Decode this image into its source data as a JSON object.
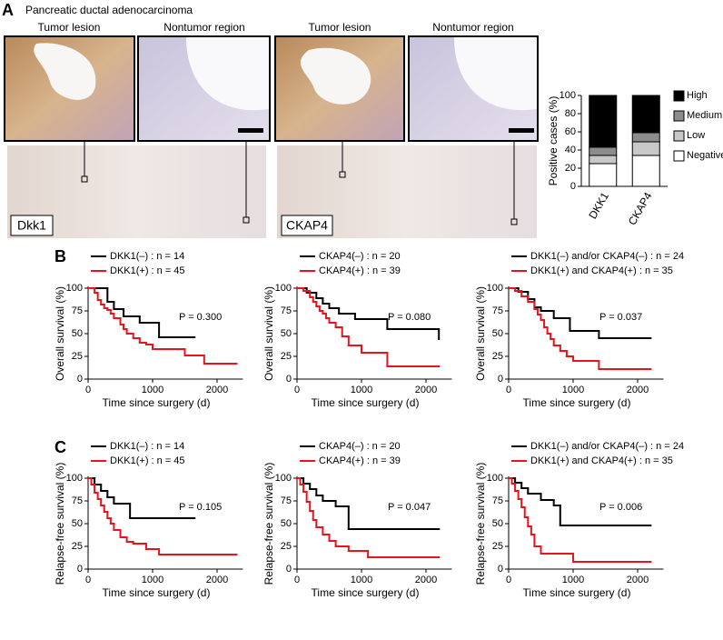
{
  "panel_labels": [
    "A",
    "B",
    "C"
  ],
  "panel_a": {
    "title": "Pancreatic ductal adenocarcinoma",
    "images": [
      {
        "left_label": "Tumor lesion",
        "right_label": "Nontumor region",
        "marker": "Dkk1"
      },
      {
        "left_label": "Tumor lesion",
        "right_label": "Nontumor region",
        "marker": "CKAP4"
      }
    ]
  },
  "chart_data": [
    {
      "type": "stacked_bar",
      "ylabel": "Positive cases (%)",
      "categories": [
        "DKK1",
        "CKAP4"
      ],
      "series": [
        {
          "name": "Negative",
          "color": "#ffffff",
          "values": [
            25,
            34
          ]
        },
        {
          "name": "Low",
          "color": "#c8c8c8",
          "values": [
            9,
            15
          ]
        },
        {
          "name": "Medium",
          "color": "#8c8c8c",
          "values": [
            9,
            10
          ]
        },
        {
          "name": "High",
          "color": "#000000",
          "values": [
            57,
            41
          ]
        }
      ],
      "ylim": [
        0,
        100
      ],
      "yticks": [
        0,
        20,
        40,
        60,
        80,
        100
      ]
    },
    {
      "type": "step",
      "ylabel": "Overall survival (%)",
      "xlabel": "Time since surgery (d)",
      "annotation": "P = 0.300",
      "xlim": [
        0,
        2400
      ],
      "xticks": [
        0,
        1000,
        2000
      ],
      "ylim": [
        0,
        100
      ],
      "yticks": [
        0,
        25,
        50,
        75,
        100
      ],
      "series": [
        {
          "name": "DKK1(–) : n = 14",
          "color": "#000000",
          "x": [
            0,
            300,
            400,
            550,
            800,
            1100,
            1650
          ],
          "values": [
            100,
            85,
            77,
            69,
            62,
            46,
            46
          ]
        },
        {
          "name": "DKK1(+) : n = 45",
          "color": "#e8141c",
          "x": [
            0,
            100,
            150,
            200,
            250,
            300,
            350,
            400,
            500,
            550,
            600,
            700,
            800,
            900,
            1000,
            1500,
            1800,
            2300
          ],
          "values": [
            100,
            95,
            87,
            82,
            78,
            76,
            72,
            67,
            60,
            55,
            50,
            45,
            40,
            38,
            33,
            26,
            17,
            17
          ]
        }
      ]
    },
    {
      "type": "step",
      "ylabel": "Overall survival (%)",
      "xlabel": "Time since surgery (d)",
      "annotation": "P = 0.080",
      "xlim": [
        0,
        2400
      ],
      "xticks": [
        0,
        1000,
        2000
      ],
      "ylim": [
        0,
        100
      ],
      "yticks": [
        0,
        25,
        50,
        75,
        100
      ],
      "series": [
        {
          "name": "CKAP4(–) : n = 20",
          "color": "#000000",
          "x": [
            0,
            150,
            300,
            400,
            500,
            650,
            900,
            1400,
            2200
          ],
          "values": [
            100,
            95,
            89,
            83,
            78,
            72,
            66,
            55,
            44
          ]
        },
        {
          "name": "CKAP4(+) : n = 39",
          "color": "#e8141c",
          "x": [
            0,
            100,
            200,
            250,
            300,
            350,
            400,
            450,
            500,
            600,
            700,
            800,
            1000,
            1400,
            2200
          ],
          "values": [
            100,
            97,
            90,
            85,
            80,
            75,
            72,
            67,
            62,
            57,
            47,
            37,
            29,
            14,
            14
          ]
        }
      ]
    },
    {
      "type": "step",
      "ylabel": "Overall survival (%)",
      "xlabel": "Time since surgery (d)",
      "annotation": "P = 0.037",
      "xlim": [
        0,
        2400
      ],
      "xticks": [
        0,
        1000,
        2000
      ],
      "ylim": [
        0,
        100
      ],
      "yticks": [
        0,
        25,
        50,
        75,
        100
      ],
      "series": [
        {
          "name": "DKK1(–) and/or CKAP4(–) : n = 24",
          "color": "#000000",
          "x": [
            0,
            150,
            300,
            400,
            500,
            700,
            950,
            1400,
            2200
          ],
          "values": [
            100,
            96,
            88,
            79,
            75,
            67,
            53,
            45,
            45
          ]
        },
        {
          "name": "DKK1(+) and CKAP4(+) : n = 35",
          "color": "#e8141c",
          "x": [
            0,
            100,
            200,
            300,
            400,
            450,
            500,
            550,
            600,
            650,
            700,
            800,
            900,
            1000,
            1400,
            2200
          ],
          "values": [
            100,
            97,
            91,
            85,
            77,
            71,
            65,
            57,
            50,
            44,
            37,
            31,
            25,
            20,
            11,
            11
          ]
        }
      ]
    },
    {
      "type": "step",
      "ylabel": "Relapse-free survival (%)",
      "xlabel": "Time since surgery (d)",
      "annotation": "P = 0.105",
      "xlim": [
        0,
        2400
      ],
      "xticks": [
        0,
        1000,
        2000
      ],
      "ylim": [
        0,
        100
      ],
      "yticks": [
        0,
        25,
        50,
        75,
        100
      ],
      "series": [
        {
          "name": "DKK1(–) : n = 14",
          "color": "#000000",
          "x": [
            0,
            100,
            200,
            300,
            400,
            650,
            1650
          ],
          "values": [
            100,
            93,
            86,
            79,
            72,
            56,
            56
          ]
        },
        {
          "name": "DKK1(+) : n = 45",
          "color": "#e8141c",
          "x": [
            0,
            50,
            100,
            150,
            200,
            250,
            300,
            350,
            400,
            500,
            600,
            700,
            900,
            1100,
            2300
          ],
          "values": [
            100,
            93,
            84,
            77,
            70,
            63,
            56,
            50,
            43,
            35,
            30,
            28,
            22,
            16,
            16
          ]
        }
      ]
    },
    {
      "type": "step",
      "ylabel": "Relapse-free survival (%)",
      "xlabel": "Time since surgery (d)",
      "annotation": "P = 0.047",
      "xlim": [
        0,
        2400
      ],
      "xticks": [
        0,
        1000,
        2000
      ],
      "ylim": [
        0,
        100
      ],
      "yticks": [
        0,
        25,
        50,
        75,
        100
      ],
      "series": [
        {
          "name": "CKAP4(–) : n = 20",
          "color": "#000000",
          "x": [
            0,
            100,
            200,
            300,
            400,
            600,
            800,
            2200
          ],
          "values": [
            100,
            94,
            88,
            81,
            75,
            69,
            44,
            44
          ]
        },
        {
          "name": "CKAP4(+) : n = 39",
          "color": "#e8141c",
          "x": [
            0,
            50,
            100,
            150,
            200,
            250,
            300,
            400,
            500,
            600,
            800,
            1100,
            2200
          ],
          "values": [
            100,
            93,
            85,
            74,
            64,
            54,
            46,
            38,
            31,
            25,
            20,
            13,
            13
          ]
        }
      ]
    },
    {
      "type": "step",
      "ylabel": "Relapse-free survival (%)",
      "xlabel": "Time since surgery (d)",
      "annotation": "P = 0.006",
      "xlim": [
        0,
        2400
      ],
      "xticks": [
        0,
        1000,
        2000
      ],
      "ylim": [
        0,
        100
      ],
      "yticks": [
        0,
        25,
        50,
        75,
        100
      ],
      "series": [
        {
          "name": "DKK1(–) and/or CKAP4(–) : n = 24",
          "color": "#000000",
          "x": [
            0,
            100,
            200,
            300,
            500,
            700,
            800,
            2200
          ],
          "values": [
            100,
            95,
            89,
            83,
            76,
            70,
            48,
            48
          ]
        },
        {
          "name": "DKK1(+) and CKAP4(+) : n = 35",
          "color": "#e8141c",
          "x": [
            0,
            50,
            100,
            150,
            200,
            250,
            300,
            350,
            400,
            500,
            1000,
            2200
          ],
          "values": [
            100,
            94,
            86,
            77,
            68,
            57,
            47,
            38,
            25,
            17,
            8,
            8
          ]
        }
      ]
    }
  ]
}
